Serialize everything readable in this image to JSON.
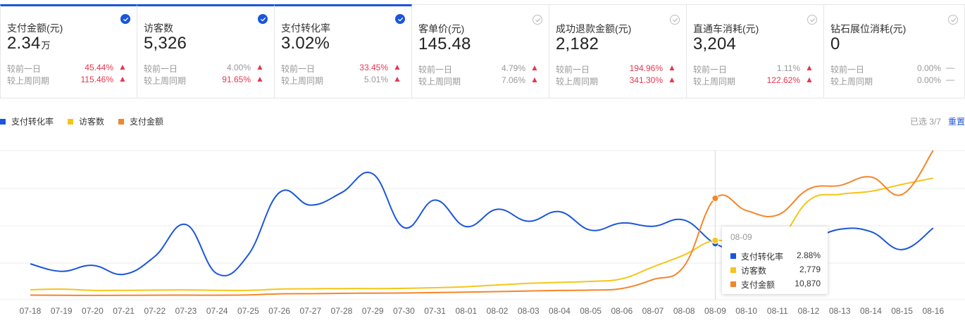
{
  "cards": [
    {
      "title": "支付金额(元)",
      "value": "2.34",
      "unit": "万",
      "checked": true,
      "active": true,
      "day_label": "较前一日",
      "day_pct": "45.44%",
      "day_dir": "up",
      "week_label": "较上周同期",
      "week_pct": "115.46%",
      "week_dir": "up"
    },
    {
      "title": "访客数",
      "value": "5,326",
      "unit": "",
      "checked": true,
      "active": true,
      "day_label": "较前一日",
      "day_pct": "4.00%",
      "day_dir": "up",
      "day_color": "gray",
      "week_label": "较上周同期",
      "week_pct": "91.65%",
      "week_dir": "up"
    },
    {
      "title": "支付转化率",
      "value": "3.02%",
      "unit": "",
      "checked": true,
      "active": true,
      "day_label": "较前一日",
      "day_pct": "33.45%",
      "day_dir": "up",
      "week_label": "较上周同期",
      "week_pct": "5.01%",
      "week_dir": "up",
      "week_color": "gray"
    },
    {
      "title": "客单价(元)",
      "value": "145.48",
      "unit": "",
      "checked": false,
      "active": false,
      "day_label": "较前一日",
      "day_pct": "4.79%",
      "day_dir": "up",
      "day_color": "gray",
      "week_label": "较上周同期",
      "week_pct": "7.06%",
      "week_dir": "up",
      "week_color": "gray"
    },
    {
      "title": "成功退款金额(元)",
      "value": "2,182",
      "unit": "",
      "checked": false,
      "active": false,
      "day_label": "较前一日",
      "day_pct": "194.96%",
      "day_dir": "up",
      "week_label": "较上周同期",
      "week_pct": "341.30%",
      "week_dir": "up"
    },
    {
      "title": "直通车消耗(元)",
      "value": "3,204",
      "unit": "",
      "checked": false,
      "active": false,
      "day_label": "较前一日",
      "day_pct": "1.11%",
      "day_dir": "up",
      "day_color": "gray",
      "week_label": "较上周同期",
      "week_pct": "122.62%",
      "week_dir": "up"
    },
    {
      "title": "钻石展位消耗(元)",
      "value": "0",
      "unit": "",
      "checked": false,
      "active": false,
      "day_label": "较前一日",
      "day_pct": "0.00%",
      "day_dir": "flat",
      "week_label": "较上周同期",
      "week_pct": "0.00%",
      "week_dir": "flat"
    }
  ],
  "legend": [
    {
      "name": "支付转化率",
      "color": "#1a56db"
    },
    {
      "name": "访客数",
      "color": "#f5c518"
    },
    {
      "name": "支付金额",
      "color": "#f5852a"
    }
  ],
  "selection": {
    "label": "已选 3/7",
    "reset": "重置"
  },
  "tooltip": {
    "date": "08-09",
    "rows": [
      {
        "name": "支付转化率",
        "value": "2.88%",
        "color": "#1a56db"
      },
      {
        "name": "访客数",
        "value": "2,779",
        "color": "#f5c518"
      },
      {
        "name": "支付金额",
        "value": "10,870",
        "color": "#f5852a"
      }
    ]
  },
  "chart_data": {
    "type": "line",
    "x": [
      "07-18",
      "07-19",
      "07-20",
      "07-21",
      "07-22",
      "07-23",
      "07-24",
      "07-25",
      "07-26",
      "07-27",
      "07-28",
      "07-29",
      "07-30",
      "07-31",
      "08-01",
      "08-02",
      "08-03",
      "08-04",
      "08-05",
      "08-06",
      "08-07",
      "08-08",
      "08-09",
      "08-10",
      "08-11",
      "08-12",
      "08-13",
      "08-14",
      "08-15",
      "08-16"
    ],
    "grid": true,
    "highlight_index": 22,
    "series": [
      {
        "name": "支付转化率",
        "color": "#1a56db",
        "values": [
          2.2,
          1.95,
          2.15,
          1.85,
          2.45,
          3.52,
          1.87,
          2.5,
          4.59,
          4.17,
          4.59,
          5.22,
          3.42,
          4.34,
          3.45,
          4.03,
          3.63,
          3.95,
          3.33,
          3.57,
          3.46,
          3.67,
          2.88,
          2.6,
          2.7,
          2.98,
          3.36,
          3.28,
          2.68,
          3.4
        ]
      },
      {
        "name": "访客数",
        "color": "#f5c518",
        "values": [
          300,
          330,
          270,
          270,
          280,
          290,
          270,
          270,
          330,
          350,
          360,
          360,
          370,
          400,
          450,
          540,
          620,
          670,
          720,
          850,
          1450,
          2050,
          2779,
          2400,
          2700,
          4780,
          5100,
          5250,
          5600,
          5910
        ]
      },
      {
        "name": "支付金额",
        "color": "#f5852a",
        "values": [
          60,
          40,
          30,
          40,
          50,
          60,
          50,
          80,
          200,
          220,
          260,
          280,
          300,
          340,
          400,
          450,
          520,
          580,
          620,
          800,
          1800,
          3300,
          10870,
          9500,
          9000,
          11900,
          12300,
          13250,
          11300,
          16200
        ]
      }
    ]
  }
}
